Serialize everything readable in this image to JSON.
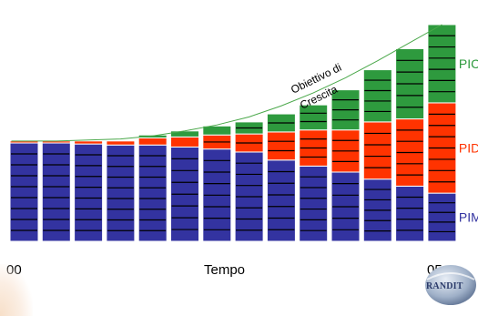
{
  "chart_data": {
    "type": "bar",
    "stacked": true,
    "categories": [
      "00",
      "",
      "",
      "",
      "",
      "",
      "",
      "",
      "",
      "",
      "",
      "",
      "",
      "05"
    ],
    "xlabel": "Tempo",
    "ylabel": "",
    "series": [
      {
        "name": "PIM",
        "color": "#3333a0",
        "values": [
          98,
          98,
          97,
          96,
          96,
          94,
          92,
          89,
          81,
          75,
          69,
          62,
          55,
          48
        ]
      },
      {
        "name": "PID",
        "color": "#ff3300",
        "values": [
          2,
          2,
          3,
          4,
          7,
          10,
          14,
          18,
          28,
          36,
          42,
          57,
          67,
          90
        ]
      },
      {
        "name": "PIC",
        "color": "#2e9a3e",
        "values": [
          0,
          0,
          0,
          0,
          3,
          6,
          9,
          12,
          18,
          25,
          40,
          52,
          70,
          78
        ]
      }
    ],
    "ylim": [
      0,
      216
    ],
    "target_curve": {
      "label": "Obiettivo di Crescita",
      "color": "#4aa84a",
      "values": [
        100,
        100,
        101,
        102,
        105,
        110,
        116,
        124,
        135,
        148,
        163,
        180,
        198,
        216
      ]
    },
    "colors": {
      "border": "#ffffff",
      "segment_line": "#000000",
      "axis_label_text": "#000000"
    }
  },
  "logo": {
    "text": "RANDIT"
  }
}
